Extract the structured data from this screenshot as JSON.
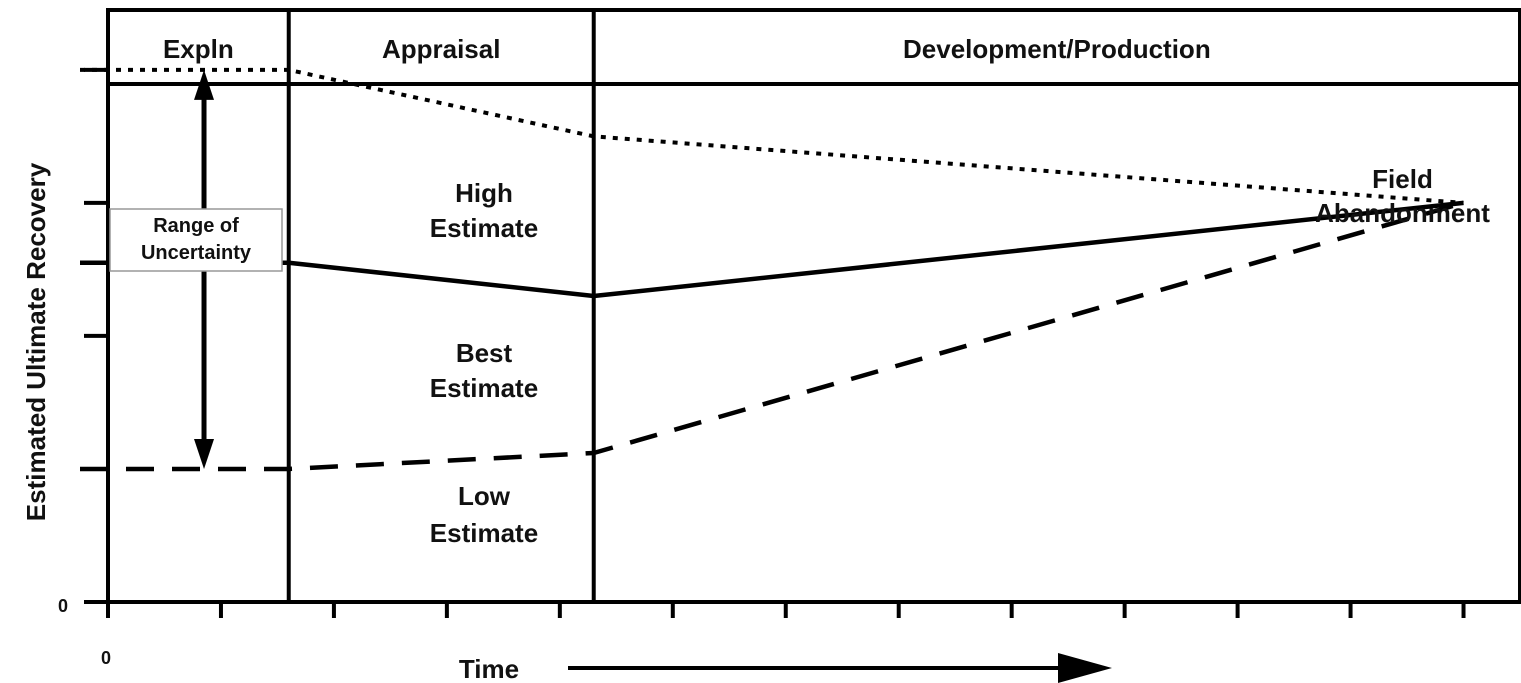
{
  "chart_data": {
    "type": "line",
    "ylabel": "Estimated Ultimate Recovery",
    "xlabel": "Time",
    "x_origin_label": "0",
    "y_origin_label": "0",
    "phases": [
      {
        "label": "Expln",
        "start": 0.0,
        "end": 1.6
      },
      {
        "label": "Appraisal",
        "start": 1.6,
        "end": 4.3
      },
      {
        "label": "Development/Production",
        "start": 4.3,
        "end": 12.5
      }
    ],
    "xlim": [
      0,
      12.5
    ],
    "ylim": [
      0,
      4.45
    ],
    "x_ticks": [
      0,
      1,
      2,
      3,
      4,
      5,
      6,
      7,
      8,
      9,
      10,
      11,
      12
    ],
    "y_ticks": [
      1,
      2,
      3,
      4
    ],
    "series": [
      {
        "name": "High Estimate",
        "style": "dotted",
        "x": [
          0,
          1.6,
          4.3,
          12
        ],
        "y": [
          4.0,
          4.0,
          3.5,
          3.0
        ]
      },
      {
        "name": "Best Estimate",
        "style": "solid",
        "x": [
          0,
          1.6,
          4.3,
          12
        ],
        "y": [
          2.55,
          2.55,
          2.3,
          3.0
        ]
      },
      {
        "name": "Low Estimate",
        "style": "dashed",
        "x": [
          0,
          1.6,
          4.3,
          12
        ],
        "y": [
          1.0,
          1.0,
          1.12,
          3.0
        ]
      }
    ],
    "range_annotation": {
      "label_lines": [
        "Range of",
        "Uncertainty"
      ],
      "x": 0.85,
      "y_top": 4.0,
      "y_bottom": 1.0
    },
    "endpoint_annotation": {
      "label_lines": [
        "Field",
        "Abandonment"
      ],
      "x": 12,
      "y": 3.0
    },
    "grid": false,
    "legend": "none (series labeled inline)",
    "colors": {
      "ink": "#000000",
      "background": "#ffffff"
    }
  }
}
